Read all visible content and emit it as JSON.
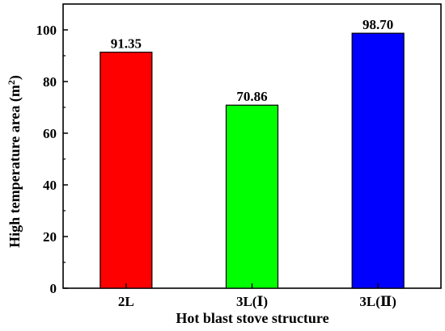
{
  "chart_data": {
    "type": "bar",
    "categories": [
      "2L",
      "3L(Ⅰ)",
      "3L(Ⅱ)"
    ],
    "values": [
      91.35,
      70.86,
      98.7
    ],
    "value_labels": [
      "91.35",
      "70.86",
      "98.70"
    ],
    "colors": [
      "#ff0000",
      "#00ff00",
      "#0000ff"
    ],
    "xlabel": "Hot blast stove structure",
    "ylabel_prefix": "High temperature area (m",
    "ylabel_sup": "2",
    "ylabel_suffix": ")",
    "ylim": [
      0,
      110
    ],
    "yticks": [
      0,
      20,
      40,
      60,
      80,
      100
    ],
    "grid": false
  }
}
